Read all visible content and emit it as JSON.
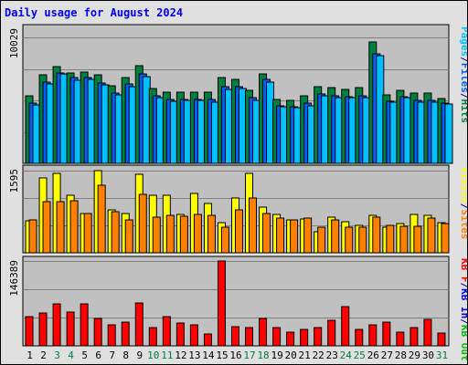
{
  "chart_data": {
    "type": "bar",
    "title": "Daily usage for August 2024",
    "categories": [
      "1",
      "2",
      "3",
      "4",
      "5",
      "6",
      "7",
      "8",
      "9",
      "10",
      "11",
      "12",
      "13",
      "14",
      "15",
      "16",
      "17",
      "18",
      "19",
      "20",
      "21",
      "22",
      "23",
      "24",
      "25",
      "26",
      "27",
      "28",
      "29",
      "30",
      "31"
    ],
    "weekend_days": [
      "3",
      "4",
      "10",
      "11",
      "17",
      "18",
      "24",
      "25",
      "31"
    ],
    "panels": [
      {
        "name": "requests",
        "ymax_label": "10029",
        "ymax": 10029,
        "legend": [
          {
            "text": "Pages",
            "color": "#00c0ff"
          },
          {
            "text": "/",
            "color": "#000080"
          },
          {
            "text": "Files",
            "color": "#0060ff"
          },
          {
            "text": "/",
            "color": "#000080"
          },
          {
            "text": "Hits",
            "color": "#008040"
          }
        ],
        "series": [
          {
            "name": "Hits",
            "color": "#008040",
            "values": [
              5350,
              7050,
              7700,
              7200,
              7250,
              7030,
              6150,
              6850,
              7750,
              5950,
              5700,
              5700,
              5650,
              5650,
              6850,
              6700,
              5800,
              7150,
              5100,
              5050,
              5350,
              6100,
              6050,
              5900,
              6050,
              9700,
              5450,
              5850,
              5600,
              5600,
              5150
            ]
          },
          {
            "name": "Files",
            "color": "#0060ff",
            "values": [
              4800,
              6500,
              7200,
              6800,
              6800,
              6400,
              5600,
              6300,
              7100,
              5400,
              5100,
              5100,
              5100,
              5100,
              6100,
              6100,
              5200,
              6700,
              4600,
              4500,
              4800,
              5550,
              5400,
              5300,
              5400,
              8700,
              4950,
              5300,
              5000,
              5000,
              4800
            ]
          },
          {
            "name": "Pages",
            "color": "#00c0ff",
            "values": [
              4650,
              6350,
              7100,
              6600,
              6650,
              6250,
              5450,
              6100,
              6900,
              5250,
              4950,
              5000,
              5000,
              4900,
              5900,
              5950,
              5000,
              6450,
              4500,
              4450,
              4600,
              5400,
              5250,
              5200,
              5250,
              8550,
              4850,
              5200,
              4900,
              4850,
              4700
            ]
          }
        ]
      },
      {
        "name": "visits",
        "ymax_label": "1595",
        "ymax": 1595,
        "legend": [
          {
            "text": "Visits",
            "color": "#ffff00"
          },
          {
            "text": "/",
            "color": "#000080"
          },
          {
            "text": "Sites",
            "color": "#ff8000"
          }
        ],
        "series": [
          {
            "name": "Visits",
            "color": "#ffff00",
            "values": [
              620,
              1450,
              1550,
              1110,
              760,
              1595,
              840,
              760,
              1520,
              1110,
              1110,
              740,
              1150,
              950,
              590,
              1070,
              1540,
              880,
              740,
              630,
              650,
              410,
              690,
              600,
              530,
              720,
              500,
              560,
              740,
              730,
              580
            ]
          },
          {
            "name": "Sites",
            "color": "#ff8000",
            "values": [
              640,
              1000,
              990,
              1010,
              770,
              1320,
              800,
              640,
              1140,
              700,
              720,
              710,
              740,
              720,
              500,
              830,
              1070,
              760,
              680,
              630,
              670,
              500,
              630,
              490,
              500,
              700,
              530,
              520,
              510,
              680,
              560
            ]
          }
        ]
      },
      {
        "name": "kbytes",
        "ymax_label": "146389",
        "ymax": 146389,
        "legend": [
          {
            "text": "KB F",
            "color": "#ff0000"
          },
          {
            "text": "/",
            "color": "#000080"
          },
          {
            "text": "KB In",
            "color": "#0000ff"
          },
          {
            "text": "/",
            "color": "#000080"
          },
          {
            "text": "KB Out",
            "color": "#00c000"
          }
        ],
        "series": [
          {
            "name": "KB F",
            "color": "#ff0000",
            "values": [
              51000,
              56500,
              72000,
              57500,
              72000,
              47500,
              36500,
              41000,
              74500,
              31000,
              50500,
              39000,
              36000,
              20000,
              146389,
              33000,
              32000,
              47500,
              32000,
              23500,
              29000,
              31000,
              43500,
              67000,
              28000,
              35500,
              40500,
              23000,
              31000,
              45000,
              21500
            ]
          },
          {
            "name": "KB In",
            "color": "#0000ff",
            "values": [
              0,
              0,
              0,
              0,
              0,
              0,
              0,
              0,
              0,
              0,
              0,
              0,
              0,
              0,
              0,
              0,
              0,
              0,
              0,
              0,
              0,
              0,
              0,
              0,
              0,
              0,
              0,
              0,
              0,
              0,
              0
            ]
          },
          {
            "name": "KB Out",
            "color": "#00c000",
            "values": [
              0,
              0,
              0,
              0,
              0,
              0,
              0,
              0,
              0,
              0,
              0,
              0,
              0,
              0,
              0,
              0,
              0,
              0,
              0,
              0,
              0,
              0,
              0,
              0,
              0,
              0,
              0,
              0,
              0,
              0,
              0
            ]
          }
        ]
      }
    ],
    "grid": true,
    "legend_placement": "right"
  },
  "colors": {
    "frame_bg": "#e0e0e0",
    "plot_bg": "#c0c0c0",
    "title": "#0000ff",
    "axis_label": "#000000",
    "weekday_label": "#000000",
    "weekend_label": "#008040",
    "gridline": "#808080"
  }
}
